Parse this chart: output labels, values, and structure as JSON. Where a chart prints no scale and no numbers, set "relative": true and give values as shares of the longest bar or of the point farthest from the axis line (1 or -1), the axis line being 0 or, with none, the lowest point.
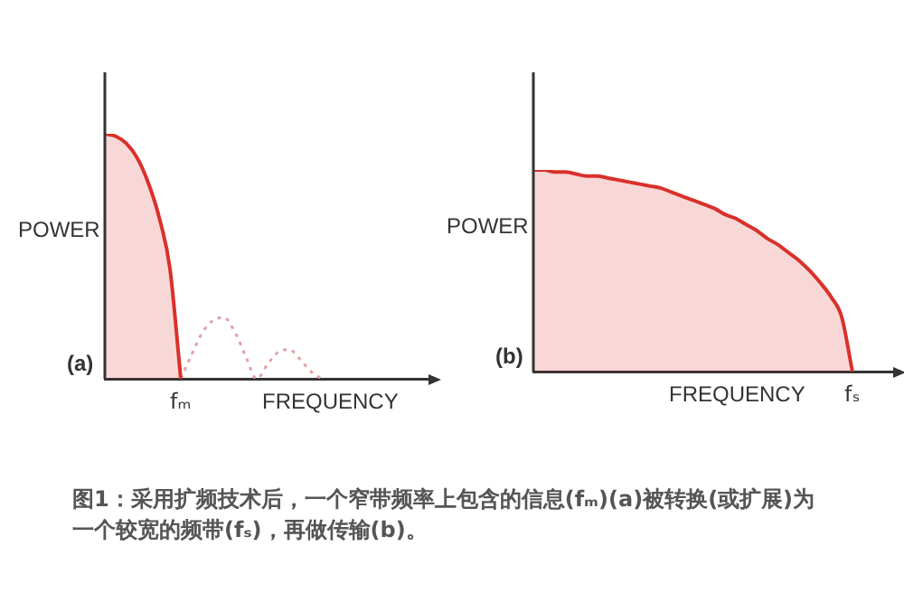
{
  "chart_data": [
    {
      "type": "area",
      "relative": true,
      "ylabel": "POWER",
      "xlabel": "FREQUENCY",
      "legend": false,
      "grid": false,
      "annotations": [
        "(a)",
        "fₘ",
        "图1：采用扩频技术后，一个窄带频率上包含的信息(fₘ)(a)被转换(或扩展)为一个较宽的频带(fₛ)，再做传输(b)。"
      ],
      "categories": [
        null,
        null,
        null,
        null,
        null,
        null,
        null,
        null,
        null,
        null,
        null,
        null,
        null,
        null,
        null,
        null,
        null,
        null,
        null,
        null,
        null,
        null,
        null,
        null,
        null,
        null,
        null,
        null,
        null,
        null,
        null
      ],
      "series": [
        {
          "color": "#d9312b",
          "values": [
            1,
            0.99,
            0.96,
            0.9,
            0.8,
            0.66,
            0.45,
            0,
            null,
            null,
            null,
            null,
            null,
            null,
            null,
            null,
            null,
            null,
            null,
            null,
            null,
            null,
            null,
            null,
            null,
            null,
            null,
            null,
            null,
            null,
            null
          ]
        },
        {
          "type": "line",
          "line_style": "dotted",
          "color": "#e3a3a3",
          "values": [
            null,
            null,
            null,
            null,
            null,
            null,
            null,
            0,
            0.1,
            0.19,
            0.24,
            0.25,
            0.19,
            0.09,
            0,
            0.06,
            0.11,
            0.12,
            0.08,
            0.03,
            0,
            null,
            null,
            null,
            null,
            null,
            null,
            null,
            null,
            null,
            null
          ]
        }
      ]
    },
    {
      "type": "area",
      "relative": true,
      "ylabel": "POWER",
      "xlabel": "FREQUENCY",
      "legend": false,
      "grid": false,
      "annotations": [
        "(b)",
        "fₛ"
      ],
      "categories": [
        null,
        null,
        null,
        null,
        null,
        null,
        null,
        null,
        null,
        null,
        null,
        null,
        null,
        null,
        null,
        null,
        null,
        null,
        null,
        null,
        null,
        null,
        null,
        null,
        null,
        null,
        null,
        null,
        null,
        null,
        null,
        null,
        null,
        null,
        null
      ],
      "series": [
        {
          "color": "#d9312b",
          "values": [
            1,
            1,
            0.99,
            0.99,
            0.98,
            0.97,
            0.97,
            0.96,
            0.95,
            0.94,
            0.93,
            0.92,
            0.91,
            0.89,
            0.87,
            0.85,
            0.83,
            0.81,
            0.78,
            0.76,
            0.73,
            0.7,
            0.66,
            0.63,
            0.59,
            0.55,
            0.5,
            0.44,
            0.37,
            0.27,
            0,
            null,
            null,
            null,
            null
          ]
        }
      ]
    }
  ]
}
